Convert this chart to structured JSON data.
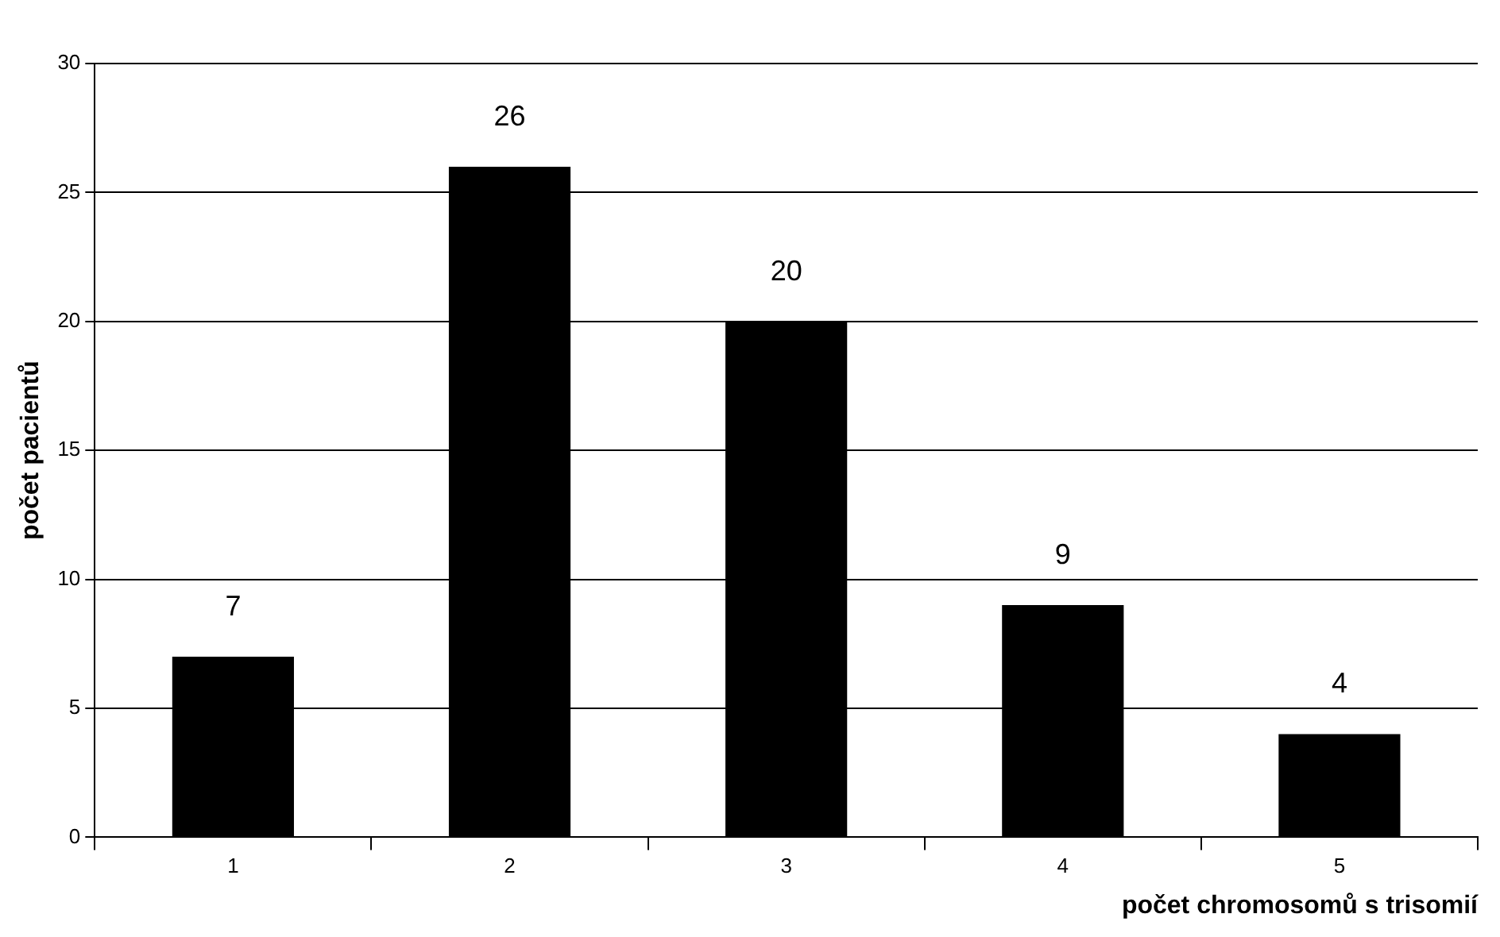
{
  "chart_data": {
    "type": "bar",
    "xlabel": "počet chromosomů s trisomií",
    "ylabel": "počet pacientů",
    "categories": [
      "1",
      "2",
      "3",
      "4",
      "5"
    ],
    "values": [
      7,
      26,
      20,
      9,
      4
    ],
    "color": "#000000",
    "ylim": [
      0,
      30
    ],
    "yticks": [
      0,
      5,
      10,
      15,
      20,
      25,
      30
    ],
    "grid": "y",
    "data_labels": true
  }
}
